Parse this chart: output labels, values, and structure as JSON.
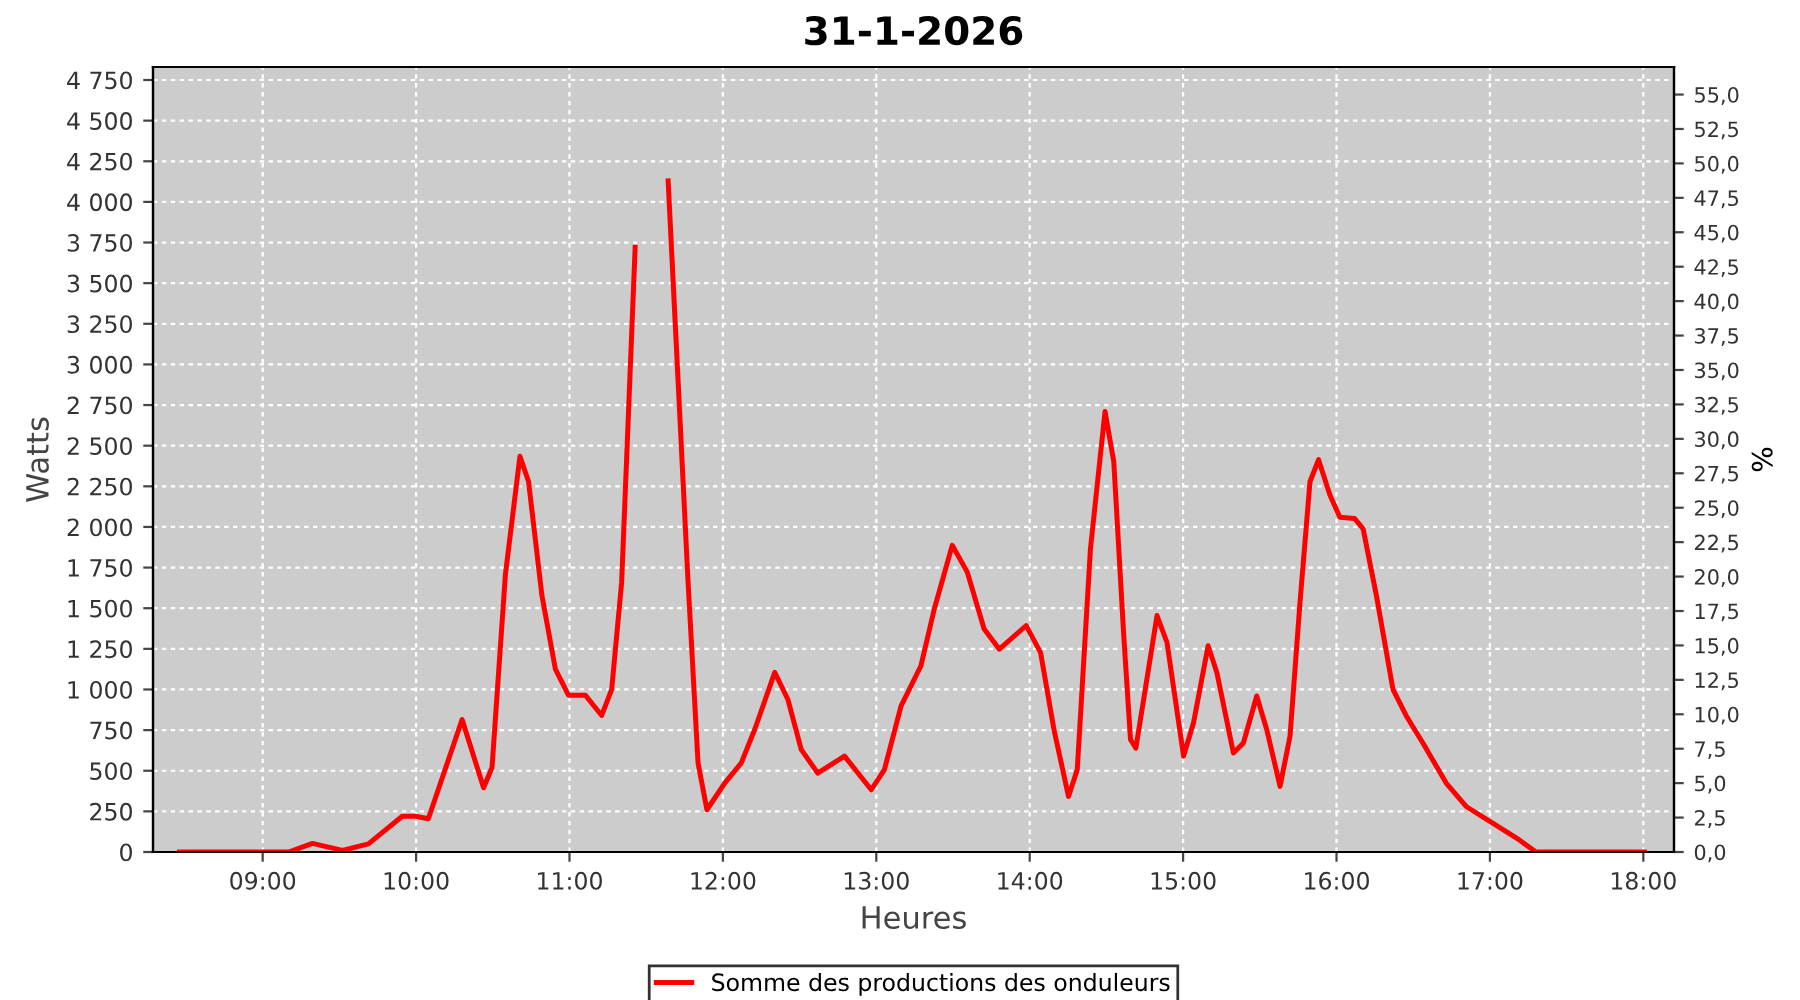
{
  "chart_data": {
    "type": "line",
    "title": "31-1-2026",
    "xlabel": "Heures",
    "ylabel": "Watts",
    "y2label": "%",
    "x": [
      8.458,
      9.169,
      9.325,
      9.52,
      9.689,
      9.91,
      9.997,
      10.08,
      10.3,
      10.44,
      10.495,
      10.582,
      10.677,
      10.733,
      10.82,
      10.908,
      10.993,
      11.103,
      11.21,
      11.275,
      11.34,
      11.428,
      11.493,
      11.578,
      11.643,
      11.708,
      11.773,
      11.838,
      11.896,
      12.013,
      12.12,
      12.208,
      12.338,
      12.423,
      12.511,
      12.618,
      12.793,
      12.967,
      13.053,
      13.161,
      13.291,
      13.378,
      13.495,
      13.593,
      13.703,
      13.802,
      13.977,
      14.071,
      14.158,
      14.253,
      14.31,
      14.396,
      14.491,
      14.548,
      14.613,
      14.657,
      14.692,
      14.83,
      14.895,
      15.003,
      15.068,
      15.163,
      15.22,
      15.328,
      15.393,
      15.48,
      15.545,
      15.632,
      15.697,
      15.762,
      15.827,
      15.883,
      15.957,
      16.022,
      16.117,
      16.173,
      16.26,
      16.368,
      16.455,
      16.563,
      16.715,
      16.845,
      17.018,
      17.192,
      17.3,
      18.007
    ],
    "series": [
      {
        "name": "Somme des productions des onduleurs",
        "color": "#ff0000",
        "values": [
          0,
          0,
          53,
          10,
          50,
          220,
          220,
          205,
          815,
          395,
          520,
          1705,
          2435,
          2280,
          1580,
          1125,
          965,
          965,
          840,
          1000,
          1660,
          3720,
          null,
          null,
          4130,
          2895,
          1660,
          548,
          260,
          425,
          548,
          755,
          1105,
          940,
          630,
          486,
          590,
          383,
          507,
          898,
          1146,
          1495,
          1887,
          1722,
          1372,
          1248,
          1393,
          1227,
          754,
          342,
          507,
          1866,
          2710,
          2402,
          1331,
          692,
          639,
          1455,
          1289,
          590,
          795,
          1269,
          1104,
          609,
          671,
          960,
          754,
          404,
          713,
          1537,
          2278,
          2414,
          2196,
          2060,
          2052,
          1990,
          1578,
          1001,
          837,
          671,
          424,
          280,
          177,
          74,
          0,
          0
        ]
      }
    ],
    "xlim": [
      8.285,
      18.2
    ],
    "xticks": [
      {
        "value": 9,
        "label": "09:00"
      },
      {
        "value": 10,
        "label": "10:00"
      },
      {
        "value": 11,
        "label": "11:00"
      },
      {
        "value": 12,
        "label": "12:00"
      },
      {
        "value": 13,
        "label": "13:00"
      },
      {
        "value": 14,
        "label": "14:00"
      },
      {
        "value": 15,
        "label": "15:00"
      },
      {
        "value": 16,
        "label": "16:00"
      },
      {
        "value": 17,
        "label": "17:00"
      },
      {
        "value": 18,
        "label": "18:00"
      }
    ],
    "ylim": [
      0,
      4830
    ],
    "yticks": [
      0,
      250,
      500,
      750,
      {
        "value": 1000,
        "label": "1 000"
      },
      {
        "value": 1250,
        "label": "1 250"
      },
      {
        "value": 1500,
        "label": "1 500"
      },
      {
        "value": 1750,
        "label": "1 750"
      },
      {
        "value": 2000,
        "label": "2 000"
      },
      {
        "value": 2250,
        "label": "2 250"
      },
      {
        "value": 2500,
        "label": "2 500"
      },
      {
        "value": 2750,
        "label": "2 750"
      },
      {
        "value": 3000,
        "label": "3 000"
      },
      {
        "value": 3250,
        "label": "3 250"
      },
      {
        "value": 3500,
        "label": "3 500"
      },
      {
        "value": 3750,
        "label": "3 750"
      },
      {
        "value": 4000,
        "label": "4 000"
      },
      {
        "value": 4250,
        "label": "4 250"
      },
      {
        "value": 4500,
        "label": "4 500"
      },
      {
        "value": 4750,
        "label": "4 750"
      }
    ],
    "y2lim": [
      0,
      57.0
    ],
    "y2ticks": [
      {
        "value": 0,
        "label": "0,0"
      },
      {
        "value": 2.5,
        "label": "2,5"
      },
      {
        "value": 5,
        "label": "5,0"
      },
      {
        "value": 7.5,
        "label": "7,5"
      },
      {
        "value": 10,
        "label": "10,0"
      },
      {
        "value": 12.5,
        "label": "12,5"
      },
      {
        "value": 15,
        "label": "15,0"
      },
      {
        "value": 17.5,
        "label": "17,5"
      },
      {
        "value": 20,
        "label": "20,0"
      },
      {
        "value": 22.5,
        "label": "22,5"
      },
      {
        "value": 25,
        "label": "25,0"
      },
      {
        "value": 27.5,
        "label": "27,5"
      },
      {
        "value": 30,
        "label": "30,0"
      },
      {
        "value": 32.5,
        "label": "32,5"
      },
      {
        "value": 35,
        "label": "35,0"
      },
      {
        "value": 37.5,
        "label": "37,5"
      },
      {
        "value": 40,
        "label": "40,0"
      },
      {
        "value": 42.5,
        "label": "42,5"
      },
      {
        "value": 45,
        "label": "45,0"
      },
      {
        "value": 47.5,
        "label": "47,5"
      },
      {
        "value": 50,
        "label": "50,0"
      },
      {
        "value": 52.5,
        "label": "52,5"
      },
      {
        "value": 55,
        "label": "55,0"
      }
    ],
    "grid": true,
    "legend": "bottom",
    "line_style": "solid",
    "marker": "none"
  }
}
